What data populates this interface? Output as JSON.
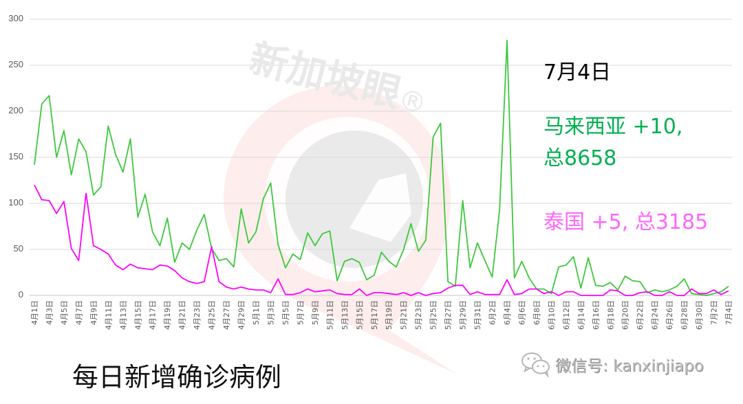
{
  "chart_data": {
    "type": "line",
    "title": "每日新增确诊病例",
    "xlabel": "",
    "ylabel": "",
    "ylim": [
      0,
      300
    ],
    "yticks": [
      0,
      50,
      100,
      150,
      200,
      250,
      300
    ],
    "grid": true,
    "x": [
      "4月1日",
      "4月2日",
      "4月3日",
      "4月4日",
      "4月5日",
      "4月6日",
      "4月7日",
      "4月8日",
      "4月9日",
      "4月10日",
      "4月11日",
      "4月12日",
      "4月13日",
      "4月14日",
      "4月15日",
      "4月16日",
      "4月17日",
      "4月18日",
      "4月19日",
      "4月20日",
      "4月21日",
      "4月22日",
      "4月23日",
      "4月24日",
      "4月25日",
      "4月26日",
      "4月27日",
      "4月28日",
      "4月29日",
      "4月30日",
      "5月1日",
      "5月2日",
      "5月3日",
      "5月4日",
      "5月5日",
      "5月6日",
      "5月7日",
      "5月8日",
      "5月9日",
      "5月10日",
      "5月11日",
      "5月12日",
      "5月13日",
      "5月14日",
      "5月15日",
      "5月16日",
      "5月17日",
      "5月18日",
      "5月19日",
      "5月20日",
      "5月21日",
      "5月22日",
      "5月23日",
      "5月24日",
      "5月25日",
      "5月26日",
      "5月27日",
      "5月28日",
      "5月29日",
      "5月30日",
      "5月31日",
      "6月1日",
      "6月2日",
      "6月3日",
      "6月4日",
      "6月5日",
      "6月6日",
      "6月7日",
      "6月8日",
      "6月9日",
      "6月10日",
      "6月11日",
      "6月12日",
      "6月13日",
      "6月14日",
      "6月15日",
      "6月16日",
      "6月17日",
      "6月18日",
      "6月19日",
      "6月20日",
      "6月21日",
      "6月22日",
      "6月23日",
      "6月24日",
      "6月25日",
      "6月26日",
      "6月27日",
      "6月28日",
      "6月29日",
      "6月30日",
      "7月1日",
      "7月2日",
      "7月3日",
      "7月4日"
    ],
    "xtick_labels": [
      "4月1日",
      "4月3日",
      "4月5日",
      "4月7日",
      "4月9日",
      "4月11日",
      "4月13日",
      "4月15日",
      "4月17日",
      "4月19日",
      "4月21日",
      "4月23日",
      "4月25日",
      "4月27日",
      "4月29日",
      "5月1日",
      "5月3日",
      "5月5日",
      "5月7日",
      "5月9日",
      "5月11日",
      "5月13日",
      "5月15日",
      "5月17日",
      "5月19日",
      "5月21日",
      "5月23日",
      "5月25日",
      "5月27日",
      "5月29日",
      "5月31日",
      "6月2日",
      "6月4日",
      "6月6日",
      "6月8日",
      "6月10日",
      "6月12日",
      "6月14日",
      "6月16日",
      "6月18日",
      "6月20日",
      "6月22日",
      "6月24日",
      "6月26日",
      "6月28日",
      "6月30日",
      "7月2日",
      "7月4日"
    ],
    "series": [
      {
        "name": "马来西亚",
        "color": "#3CC83C",
        "values": [
          142,
          208,
          217,
          150,
          179,
          131,
          170,
          156,
          109,
          118,
          184,
          153,
          134,
          170,
          85,
          110,
          69,
          54,
          84,
          36,
          57,
          50,
          71,
          88,
          51,
          38,
          40,
          31,
          94,
          57,
          69,
          105,
          122,
          55,
          30,
          45,
          39,
          68,
          54,
          67,
          70,
          16,
          37,
          40,
          36,
          17,
          22,
          47,
          37,
          31,
          50,
          78,
          48,
          60,
          172,
          187,
          15,
          10,
          103,
          30,
          57,
          38,
          20,
          93,
          277,
          19,
          37,
          19,
          7,
          7,
          2,
          31,
          33,
          42,
          8,
          41,
          11,
          10,
          14,
          6,
          21,
          16,
          15,
          3,
          6,
          4,
          6,
          10,
          18,
          2,
          1,
          0,
          2,
          4,
          10
        ]
      },
      {
        "name": "泰国",
        "color": "#FF00FF",
        "values": [
          120,
          104,
          103,
          89,
          102,
          51,
          38,
          111,
          54,
          50,
          45,
          33,
          28,
          34,
          30,
          29,
          28,
          33,
          32,
          27,
          19,
          15,
          13,
          15,
          53,
          15,
          9,
          7,
          9,
          7,
          6,
          6,
          3,
          18,
          1,
          1,
          3,
          7,
          4,
          5,
          6,
          2,
          1,
          1,
          7,
          0,
          3,
          3,
          2,
          1,
          3,
          0,
          3,
          0,
          2,
          3,
          8,
          11,
          11,
          1,
          4,
          1,
          1,
          1,
          17,
          1,
          2,
          7,
          7,
          2,
          4,
          0,
          4,
          4,
          0,
          0,
          0,
          0,
          6,
          5,
          0,
          0,
          3,
          4,
          0,
          0,
          4,
          0,
          0,
          7,
          2,
          2,
          6,
          1,
          5
        ]
      }
    ],
    "annotations": [
      "7月4日",
      "马来西亚 +10, 总8658",
      "泰国 +5, 总3185"
    ]
  },
  "annotation": {
    "date": "7月4日",
    "malaysia_line1": "马来西亚 +10,",
    "malaysia_line2": "总8658",
    "thailand": "泰国 +5, 总3185"
  },
  "caption": "每日新增确诊病例",
  "watermark": {
    "brand": "新加坡眼",
    "registered": "®",
    "wechat": "微信号: kanxinjiapo",
    "wechat_icon": "wechat-icon"
  },
  "colors": {
    "malaysia_text": "#00B050",
    "thailand_text": "#FF66FF",
    "grid": "#d9d9d9",
    "axis_text": "#595959"
  }
}
